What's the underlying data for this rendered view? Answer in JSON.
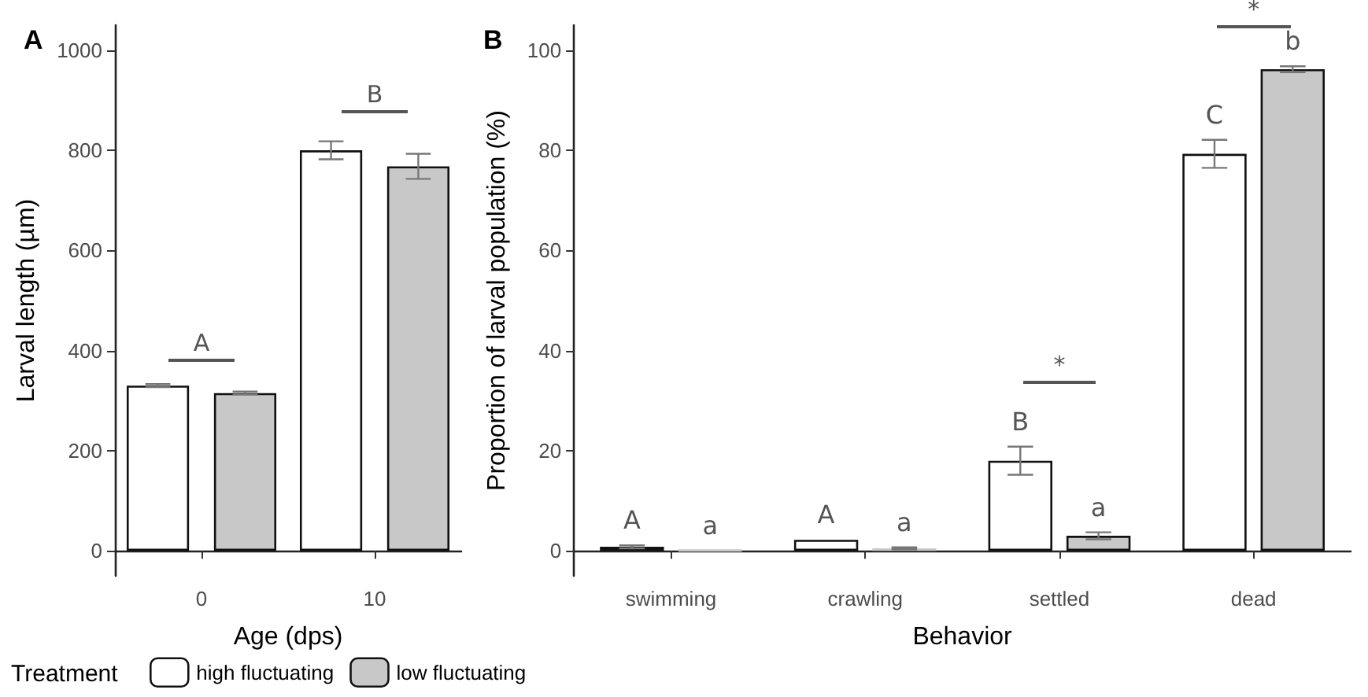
{
  "chart_data": [
    {
      "type": "bar",
      "title": "A",
      "xlabel": "Age (dps)",
      "ylabel": "Larval length (µm)",
      "legend_title": "Treatment",
      "legend": "bottom right",
      "categories": [
        "0",
        "10"
      ],
      "series": [
        {
          "name": "high fluctuating",
          "color": "#ffffff",
          "values": [
            330,
            800
          ],
          "errors": [
            3,
            18
          ]
        },
        {
          "name": "low fluctuating",
          "color": "#c8c8c8",
          "values": [
            315,
            768
          ],
          "errors": [
            3,
            25
          ]
        }
      ],
      "ylim": [
        -50,
        1050
      ],
      "yticks": [
        0,
        200,
        400,
        600,
        800,
        1000
      ],
      "grid": false,
      "annotations": [
        "A",
        "B"
      ]
    },
    {
      "type": "bar",
      "title": "B",
      "xlabel": "Behavior",
      "ylabel": "Proportion of larval population (%)",
      "categories": [
        "swimming",
        "crawling",
        "settled",
        "dead"
      ],
      "series": [
        {
          "color": "#ffffff",
          "values": [
            0.8,
            2.2,
            18,
            79.3
          ],
          "errors": [
            0.3,
            null,
            2.8,
            2.8
          ],
          "value_labels": [
            "A",
            "A",
            "B",
            "C"
          ]
        },
        {
          "color": "#c8c8c8",
          "values": [
            0.1,
            0.5,
            3,
            96.2
          ],
          "errors": [
            null,
            0.2,
            0.7,
            0.6
          ],
          "value_labels": [
            "a",
            "a",
            "a",
            "b"
          ]
        }
      ],
      "ylim": [
        -5,
        105
      ],
      "yticks": [
        0,
        20,
        40,
        60,
        80,
        100
      ],
      "grid": false,
      "annotations": [
        "*",
        "*"
      ]
    }
  ]
}
